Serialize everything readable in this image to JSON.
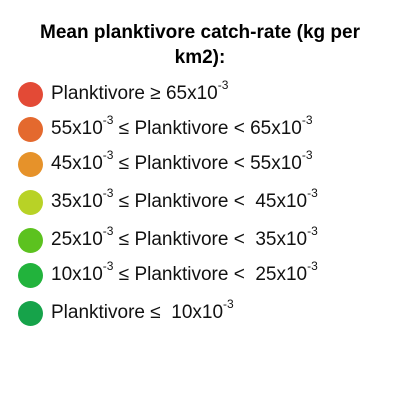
{
  "legend": {
    "title": "Mean planktivore catch-rate (kg per km2):",
    "items": [
      {
        "color": "#e34a36",
        "parts": {
          "pre": "Planktivore ≥ 65x10",
          "exp": "-3",
          "mid": "",
          "exp2": "",
          "post": ""
        }
      },
      {
        "color": "#e4692e",
        "parts": {
          "pre": "55x10",
          "exp": "-3",
          "mid": " ≤ Planktivore < 65x10",
          "exp2": "-3",
          "post": ""
        }
      },
      {
        "color": "#e6922a",
        "parts": {
          "pre": "45x10",
          "exp": "-3",
          "mid": " ≤ Planktivore < 55x10",
          "exp2": "-3",
          "post": ""
        }
      },
      {
        "color": "#b8d226",
        "parts": {
          "pre": "35x10",
          "exp": "-3",
          "mid": " ≤ Planktivore <  45x10",
          "exp2": "-3",
          "post": ""
        }
      },
      {
        "color": "#5cc21f",
        "parts": {
          "pre": "25x10",
          "exp": "-3",
          "mid": " ≤ Planktivore <  35x10",
          "exp2": "-3",
          "post": ""
        }
      },
      {
        "color": "#22b33c",
        "parts": {
          "pre": "10x10",
          "exp": "-3",
          "mid": " ≤ Planktivore <  25x10",
          "exp2": "-3",
          "post": ""
        }
      },
      {
        "color": "#16a34a",
        "parts": {
          "pre": "Planktivore ≤  10x10",
          "exp": "-3",
          "mid": "",
          "exp2": "",
          "post": ""
        }
      }
    ]
  }
}
